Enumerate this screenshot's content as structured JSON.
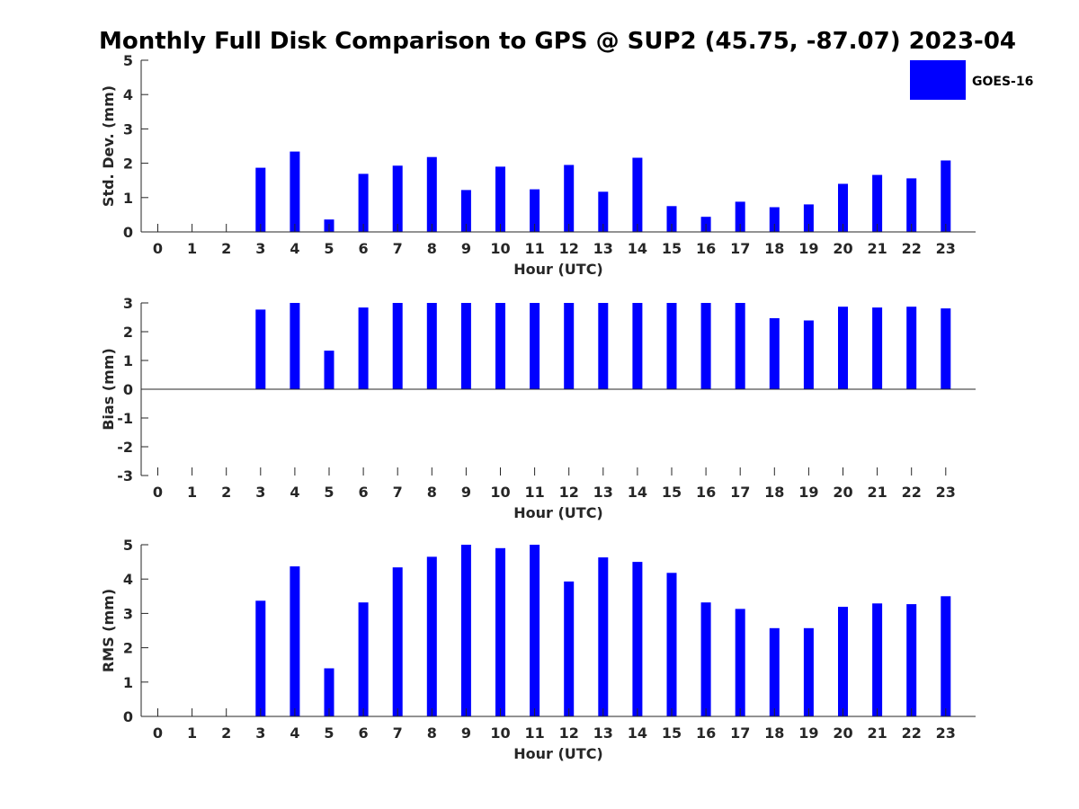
{
  "title": "Monthly Full Disk Comparison to GPS @ SUP2 (45.75, -87.07) 2023-04",
  "legend": {
    "label": "GOES-16",
    "color": "#0000ff",
    "placement": "top-right"
  },
  "colors": {
    "bar": "#0000ff",
    "axis": "#262626",
    "text": "#262626"
  },
  "chart_data": [
    {
      "type": "bar",
      "ylabel": "Std. Dev. (mm)",
      "xlabel": "Hour (UTC)",
      "ylim": [
        0,
        5
      ],
      "yticks": [
        "0",
        "1",
        "2",
        "3",
        "4",
        "5"
      ],
      "categories": [
        "0",
        "1",
        "2",
        "3",
        "4",
        "5",
        "6",
        "7",
        "8",
        "9",
        "10",
        "11",
        "12",
        "13",
        "14",
        "15",
        "16",
        "17",
        "18",
        "19",
        "20",
        "21",
        "22",
        "23"
      ],
      "series": [
        {
          "name": "GOES-16",
          "values": [
            null,
            null,
            null,
            1.87,
            2.34,
            0.36,
            1.69,
            1.93,
            2.18,
            1.22,
            1.9,
            1.24,
            1.95,
            1.17,
            2.16,
            0.75,
            0.44,
            0.88,
            0.72,
            0.8,
            1.4,
            1.66,
            1.56,
            2.08
          ]
        }
      ],
      "grid": false
    },
    {
      "type": "bar",
      "ylabel": "Bias (mm)",
      "xlabel": "Hour (UTC)",
      "ylim": [
        -3,
        3
      ],
      "yticks": [
        "-3",
        "-2",
        "-1",
        "0",
        "1",
        "2",
        "3"
      ],
      "categories": [
        "0",
        "1",
        "2",
        "3",
        "4",
        "5",
        "6",
        "7",
        "8",
        "9",
        "10",
        "11",
        "12",
        "13",
        "14",
        "15",
        "16",
        "17",
        "18",
        "19",
        "20",
        "21",
        "22",
        "23"
      ],
      "series": [
        {
          "name": "GOES-16",
          "values": [
            null,
            null,
            null,
            2.77,
            3.0,
            1.34,
            2.84,
            3.0,
            3.0,
            3.0,
            3.0,
            3.0,
            3.0,
            3.0,
            3.0,
            3.0,
            3.0,
            3.0,
            2.47,
            2.39,
            2.87,
            2.84,
            2.87,
            2.81
          ]
        }
      ],
      "grid": false
    },
    {
      "type": "bar",
      "ylabel": "RMS (mm)",
      "xlabel": "Hour (UTC)",
      "ylim": [
        0,
        5
      ],
      "yticks": [
        "0",
        "1",
        "2",
        "3",
        "4",
        "5"
      ],
      "categories": [
        "0",
        "1",
        "2",
        "3",
        "4",
        "5",
        "6",
        "7",
        "8",
        "9",
        "10",
        "11",
        "12",
        "13",
        "14",
        "15",
        "16",
        "17",
        "18",
        "19",
        "20",
        "21",
        "22",
        "23"
      ],
      "series": [
        {
          "name": "GOES-16",
          "values": [
            null,
            null,
            null,
            3.37,
            4.37,
            1.4,
            3.32,
            4.34,
            4.65,
            5.0,
            4.9,
            5.0,
            3.93,
            4.63,
            4.5,
            4.18,
            3.32,
            3.13,
            2.57,
            2.57,
            3.19,
            3.29,
            3.27,
            3.5
          ]
        }
      ],
      "grid": false
    }
  ]
}
